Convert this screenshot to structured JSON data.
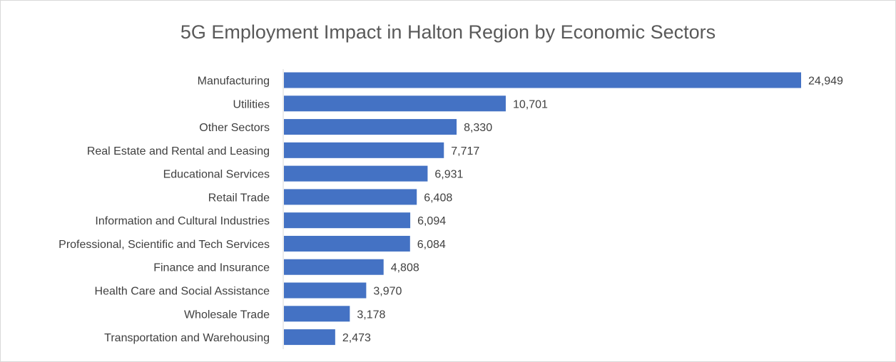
{
  "chart_data": {
    "type": "bar",
    "orientation": "horizontal",
    "title": "5G Employment Impact in Halton Region by Economic Sectors",
    "xlabel": "",
    "ylabel": "",
    "grid": false,
    "legend": "none",
    "bar_color": "#4472C4",
    "xlim": [
      0,
      24949
    ],
    "categories": [
      "Manufacturing",
      "Utilities",
      "Other Sectors",
      "Real Estate and Rental and Leasing",
      "Educational Services",
      "Retail Trade",
      "Information and Cultural Industries",
      "Professional, Scientific and Tech Services",
      "Finance and Insurance",
      "Health Care and Social Assistance",
      "Wholesale Trade",
      "Transportation and Warehousing"
    ],
    "values": [
      24949,
      10701,
      8330,
      7717,
      6931,
      6408,
      6094,
      6084,
      4808,
      3970,
      3178,
      2473
    ],
    "value_labels": [
      "24,949",
      "10,701",
      "8,330",
      "7,717",
      "6,931",
      "6,408",
      "6,094",
      "6,084",
      "4,808",
      "3,970",
      "3,178",
      "2,473"
    ]
  }
}
